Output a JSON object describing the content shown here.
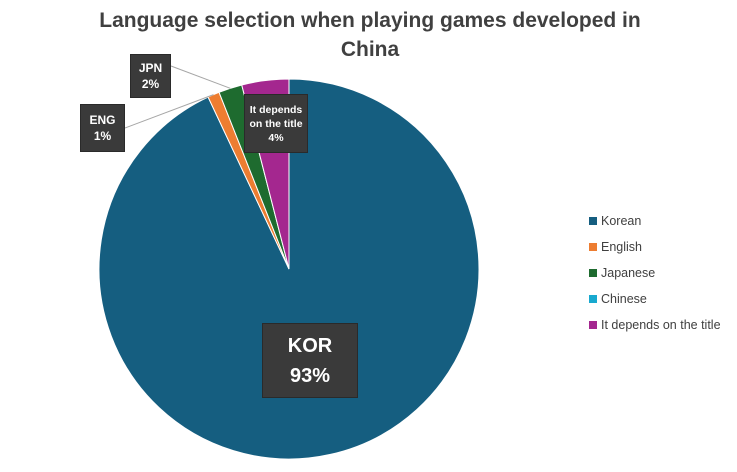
{
  "chart_data": {
    "type": "pie",
    "title": "Language selection when playing games developed in China",
    "title_lines": [
      "Language selection when playing games developed in",
      "China"
    ],
    "start_angle_deg": 0,
    "direction": "clockwise",
    "legend_position": "right",
    "slices": [
      {
        "label": "Korean",
        "value": 93,
        "color": "#155e80",
        "callout_name": "KOR",
        "callout_value": "93%"
      },
      {
        "label": "English",
        "value": 1,
        "color": "#ed7d31",
        "callout_name": "ENG",
        "callout_value": "1%"
      },
      {
        "label": "Japanese",
        "value": 2,
        "color": "#1e6b2f",
        "callout_name": "JPN",
        "callout_value": "2%"
      },
      {
        "label": "Chinese",
        "value": 0,
        "color": "#18a9cf",
        "callout_name": "",
        "callout_value": ""
      },
      {
        "label": "It depends on the title",
        "value": 4,
        "color": "#a4278f",
        "callout_name": "It depends on the title",
        "callout_value": "4%",
        "callout_name_lines": [
          "It depends",
          "on the title"
        ]
      }
    ]
  }
}
